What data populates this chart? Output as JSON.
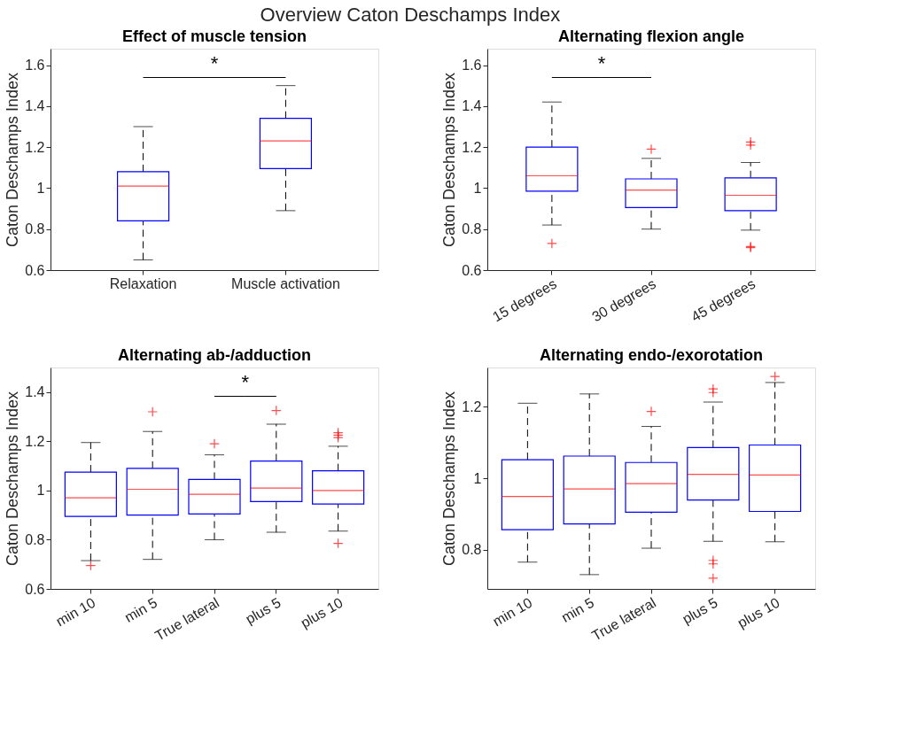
{
  "chart_data": [
    {
      "type": "box",
      "title": "Effect of muscle tension",
      "ylabel": "Caton Deschamps Index",
      "categories": [
        "Relaxation",
        "Muscle activation"
      ],
      "ylim": [
        0.6,
        1.68
      ],
      "yticks": [
        0.6,
        0.8,
        1,
        1.2,
        1.4,
        1.6
      ],
      "grid": false,
      "annotations": [
        "*",
        "Overview Caton Deschamps Index"
      ],
      "series": [
        {
          "color": "#0000ff",
          "boxes": [
            {
              "low": 0.65,
              "q1": 0.84,
              "median": 1.01,
              "q3": 1.08,
              "high": 1.3
            },
            {
              "low": 0.89,
              "q1": 1.095,
              "median": 1.23,
              "q3": 1.34,
              "high": 1.5
            }
          ]
        }
      ]
    },
    {
      "type": "box",
      "title": "Alternating flexion angle",
      "ylabel": "Caton Deschamps Index",
      "categories": [
        "15 degrees",
        "30 degrees",
        "45 degrees"
      ],
      "ylim": [
        0.6,
        1.68
      ],
      "yticks": [
        0.6,
        0.8,
        1,
        1.2,
        1.4,
        1.6
      ],
      "grid": false,
      "annotations": [
        "*"
      ],
      "series": [
        {
          "color": "#0000ff",
          "boxes": [
            {
              "low": 0.82,
              "q1": 0.985,
              "median": 1.06,
              "q3": 1.2,
              "high": 1.42,
              "outliers": [
                0.73
              ]
            },
            {
              "low": 0.8,
              "q1": 0.905,
              "median": 0.99,
              "q3": 1.045,
              "high": 1.145,
              "outliers": [
                1.19
              ]
            },
            {
              "low": 0.795,
              "q1": 0.89,
              "median": 0.965,
              "q3": 1.05,
              "high": 1.125,
              "outliers": [
                1.21,
                1.225,
                0.71,
                0.715
              ]
            }
          ]
        }
      ]
    },
    {
      "type": "box",
      "title": "Alternating ab-/adduction",
      "ylabel": "Caton Deschamps Index",
      "categories": [
        "min 10",
        "min 5",
        "True lateral",
        "plus 5",
        "plus 10"
      ],
      "ylim": [
        0.6,
        1.5
      ],
      "yticks": [
        0.6,
        0.8,
        1,
        1.2,
        1.4
      ],
      "grid": false,
      "annotations": [
        "*"
      ],
      "series": [
        {
          "color": "#0000ff",
          "boxes": [
            {
              "low": 0.715,
              "q1": 0.895,
              "median": 0.97,
              "q3": 1.075,
              "high": 1.195,
              "outliers": [
                0.695
              ]
            },
            {
              "low": 0.72,
              "q1": 0.9,
              "median": 1.005,
              "q3": 1.09,
              "high": 1.24,
              "outliers": [
                1.32
              ]
            },
            {
              "low": 0.8,
              "q1": 0.905,
              "median": 0.985,
              "q3": 1.045,
              "high": 1.145,
              "outliers": [
                1.19
              ]
            },
            {
              "low": 0.83,
              "q1": 0.955,
              "median": 1.01,
              "q3": 1.12,
              "high": 1.27,
              "outliers": [
                1.325
              ]
            },
            {
              "low": 0.835,
              "q1": 0.945,
              "median": 1.0,
              "q3": 1.08,
              "high": 1.18,
              "outliers": [
                1.215,
                1.225,
                1.235,
                0.785
              ]
            }
          ]
        }
      ]
    },
    {
      "type": "box",
      "title": "Alternating endo-/exorotation",
      "ylabel": "Caton Deschamps Index",
      "categories": [
        "min 10",
        "min 5",
        "True lateral",
        "plus 5",
        "plus 10"
      ],
      "ylim": [
        0.69,
        1.31
      ],
      "yticks": [
        0.8,
        1,
        1.2
      ],
      "grid": false,
      "series": [
        {
          "color": "#0000ff",
          "boxes": [
            {
              "low": 0.765,
              "q1": 0.856,
              "median": 0.949,
              "q3": 1.052,
              "high": 1.21
            },
            {
              "low": 0.73,
              "q1": 0.872,
              "median": 0.97,
              "q3": 1.062,
              "high": 1.236
            },
            {
              "low": 0.804,
              "q1": 0.905,
              "median": 0.985,
              "q3": 1.044,
              "high": 1.145,
              "outliers": [
                1.187
              ]
            },
            {
              "low": 0.823,
              "q1": 0.939,
              "median": 1.011,
              "q3": 1.086,
              "high": 1.213,
              "outliers": [
                1.24,
                1.25,
                0.76,
                0.77,
                0.72
              ]
            },
            {
              "low": 0.822,
              "q1": 0.907,
              "median": 1.009,
              "q3": 1.093,
              "high": 1.268,
              "outliers": [
                1.285
              ]
            }
          ]
        }
      ]
    }
  ]
}
